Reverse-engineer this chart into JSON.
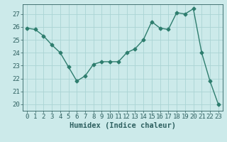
{
  "x": [
    0,
    1,
    2,
    3,
    4,
    5,
    6,
    7,
    8,
    9,
    10,
    11,
    12,
    13,
    14,
    15,
    16,
    17,
    18,
    19,
    20,
    21,
    22,
    23
  ],
  "y": [
    25.9,
    25.8,
    25.3,
    24.6,
    24.0,
    22.9,
    21.8,
    22.2,
    23.1,
    23.3,
    23.3,
    23.3,
    24.0,
    24.3,
    25.0,
    26.4,
    25.9,
    25.8,
    27.1,
    27.0,
    27.4,
    24.0,
    21.8,
    20.0
  ],
  "line_color": "#2e7d6e",
  "marker": "D",
  "marker_size": 2.5,
  "line_width": 1.0,
  "bg_color": "#cceaea",
  "grid_color": "#aad4d4",
  "xlabel": "Humidex (Indice chaleur)",
  "ylim": [
    19.5,
    27.75
  ],
  "yticks": [
    20,
    21,
    22,
    23,
    24,
    25,
    26,
    27
  ],
  "xticks": [
    0,
    1,
    2,
    3,
    4,
    5,
    6,
    7,
    8,
    9,
    10,
    11,
    12,
    13,
    14,
    15,
    16,
    17,
    18,
    19,
    20,
    21,
    22,
    23
  ],
  "tick_color": "#2e6060",
  "xlabel_color": "#2e6060",
  "tick_fontsize": 6.5,
  "xlabel_fontsize": 7.5
}
